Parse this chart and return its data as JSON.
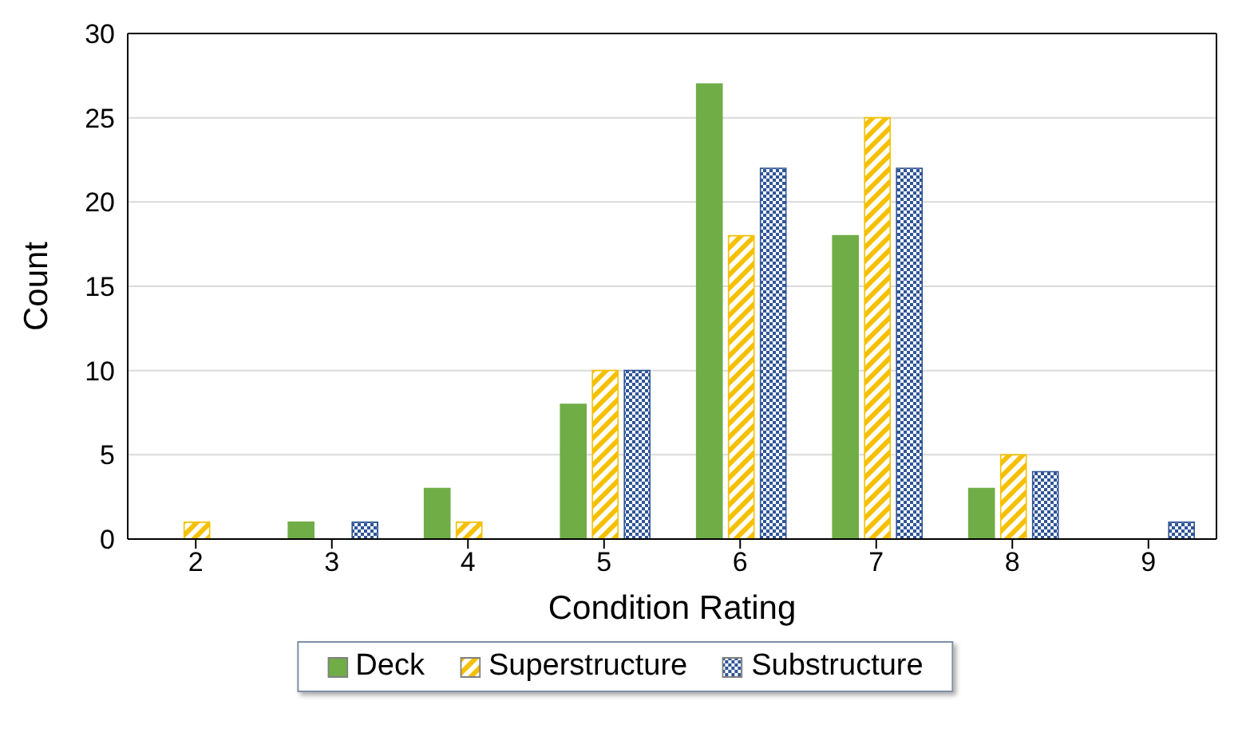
{
  "chart_data": {
    "type": "bar",
    "xlabel": "Condition Rating",
    "ylabel": "Count",
    "categories": [
      "2",
      "3",
      "4",
      "5",
      "6",
      "7",
      "8",
      "9"
    ],
    "series": [
      {
        "name": "Deck",
        "color": "#70ad47",
        "values": [
          0,
          1,
          3,
          8,
          27,
          18,
          3,
          0
        ]
      },
      {
        "name": "Superstructure",
        "color": "#f5c000",
        "values": [
          1,
          0,
          1,
          10,
          18,
          25,
          5,
          0
        ]
      },
      {
        "name": "Substructure",
        "color": "#2f5597",
        "values": [
          0,
          1,
          0,
          10,
          22,
          22,
          4,
          1
        ]
      }
    ],
    "ylim": [
      0,
      30
    ],
    "yticks": [
      0,
      5,
      10,
      15,
      20,
      25,
      30
    ],
    "grid": "y",
    "legend": "bottom"
  }
}
